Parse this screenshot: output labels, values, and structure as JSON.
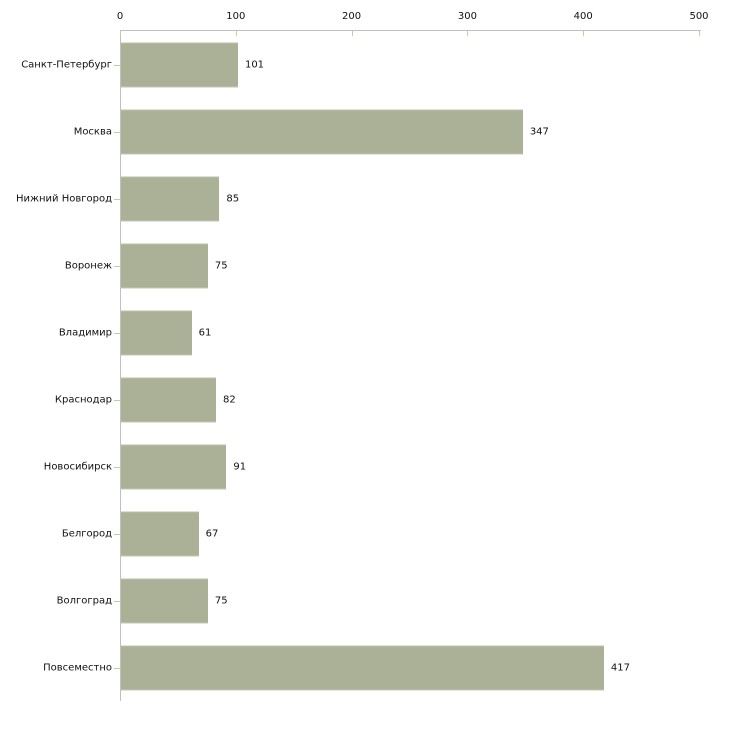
{
  "chart_data": {
    "type": "bar",
    "orientation": "horizontal",
    "title": "",
    "xlabel": "",
    "ylabel": "",
    "categories": [
      "Санкт-Петербург",
      "Москва",
      "Нижний Новгород",
      "Воронеж",
      "Владимир",
      "Краснодар",
      "Новосибирск",
      "Белгород",
      "Волгоград",
      "Повсеместно"
    ],
    "values": [
      101,
      347,
      85,
      75,
      61,
      82,
      91,
      67,
      75,
      417
    ],
    "x_ticks": [
      "0",
      "100",
      "200",
      "300",
      "400",
      "500"
    ],
    "xlim": [
      0,
      500
    ],
    "grid": false,
    "legend_position": "none",
    "value_labels_shown": true,
    "colors": {
      "bar": "#abb197",
      "axis_line": "#c0c0c0",
      "tick_mark": "#cccc99",
      "text": "#111111",
      "background": "#ffffff"
    }
  }
}
